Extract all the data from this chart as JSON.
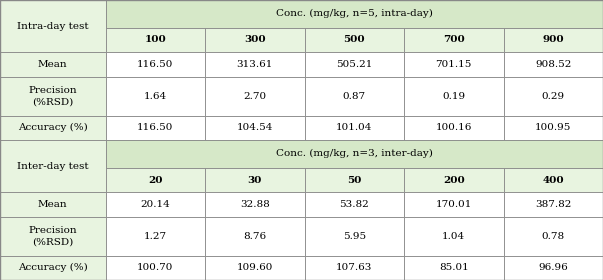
{
  "header_bg": "#d6e8c8",
  "subheader_bg": "#e8f4e0",
  "white_bg": "#ffffff",
  "border_color": "#888888",
  "font_size": 7.5,
  "figsize": [
    6.03,
    2.8
  ],
  "dpi": 100,
  "intra_label": "Intra-day test",
  "intra_conc_header": "Conc. (mg/kg, n=5, intra-day)",
  "intra_conc_values": [
    "100",
    "300",
    "500",
    "700",
    "900"
  ],
  "intra_mean": [
    "116.50",
    "313.61",
    "505.21",
    "701.15",
    "908.52"
  ],
  "intra_precision": [
    "1.64",
    "2.70",
    "0.87",
    "0.19",
    "0.29"
  ],
  "intra_accuracy": [
    "116.50",
    "104.54",
    "101.04",
    "100.16",
    "100.95"
  ],
  "inter_label": "Inter-day test",
  "inter_conc_header": "Conc. (mg/kg, n=3, inter-day)",
  "inter_conc_values": [
    "20",
    "30",
    "50",
    "200",
    "400"
  ],
  "inter_mean": [
    "20.14",
    "32.88",
    "53.82",
    "170.01",
    "387.82"
  ],
  "inter_precision": [
    "1.27",
    "8.76",
    "5.95",
    "1.04",
    "0.78"
  ],
  "inter_accuracy": [
    "100.70",
    "109.60",
    "107.63",
    "85.01",
    "96.96"
  ]
}
